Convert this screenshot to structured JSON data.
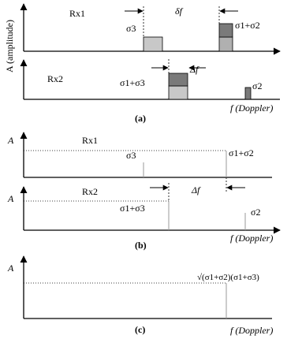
{
  "panel_a": {
    "y_axis_label": "A (amplitude)",
    "rx1_label": "Rx1",
    "rx2_label": "Rx2",
    "sigma3_label": "σ3",
    "sigma12_label": "σ1+σ2",
    "delta_f_label": "δf",
    "sigma13_label": "σ1+σ3",
    "Delta_f_label": "Δf",
    "sigma2_label": "σ2",
    "x_axis_label": "f (Doppler)",
    "caption": "(a)"
  },
  "panel_b": {
    "y_axis_label_top": "A",
    "y_axis_label_bottom": "A",
    "rx1_label": "Rx1",
    "sigma3_label": "σ3",
    "sigma12_label": "σ1+σ2",
    "rx2_label": "Rx2",
    "Delta_f_label": "Δf",
    "sigma13_label": "σ1+σ3",
    "sigma2_label": "σ2",
    "x_axis_label": "f (Doppler)",
    "caption": "(b)"
  },
  "panel_c": {
    "y_axis_label": "A",
    "product_label": "√(σ1+σ2)(σ1+σ3)",
    "x_axis_label": "f (Doppler)",
    "caption": "(c)"
  }
}
